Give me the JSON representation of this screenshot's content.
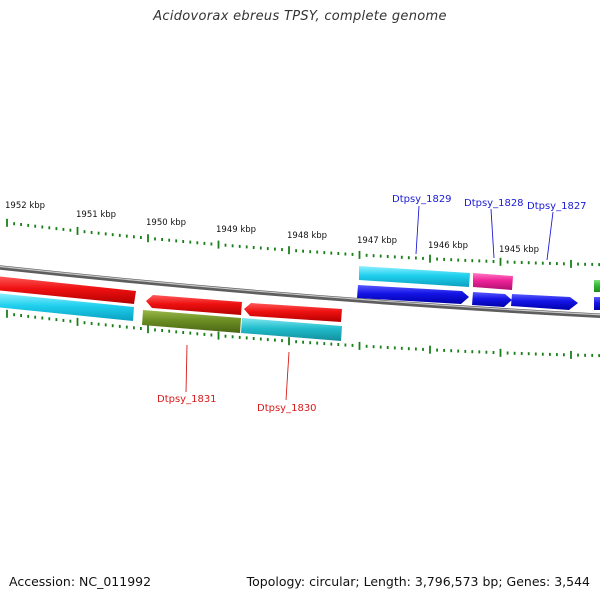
{
  "title": "Acidovorax ebreus TPSY, complete genome",
  "footer": {
    "accession": "Accession: NC_011992",
    "topology": "Topology: circular; Length: 3,796,573 bp; Genes: 3,544"
  },
  "scale_labels": [
    "1952 kbp",
    "1951 kbp",
    "1950 kbp",
    "1949 kbp",
    "1948 kbp",
    "1947 kbp",
    "1946 kbp",
    "1945 kbp"
  ],
  "gene_labels": {
    "dtpsy_1829": "Dtpsy_1829",
    "dtpsy_1828": "Dtpsy_1828",
    "dtpsy_1827": "Dtpsy_1827",
    "dtpsy_1831": "Dtpsy_1831",
    "dtpsy_1830": "Dtpsy_1830"
  },
  "colors": {
    "backbone": "#8c8c8c",
    "tick": "#1a7f1a",
    "cyan": "#2ec8e8",
    "red": "#ee1111",
    "olive": "#6b8e23",
    "teal": "#20b8c8",
    "blue": "#1414e6",
    "magenta": "#ee2299",
    "green": "#33bb33",
    "label_forward": "#1a1ad6",
    "label_reverse": "#d61a1a"
  }
}
